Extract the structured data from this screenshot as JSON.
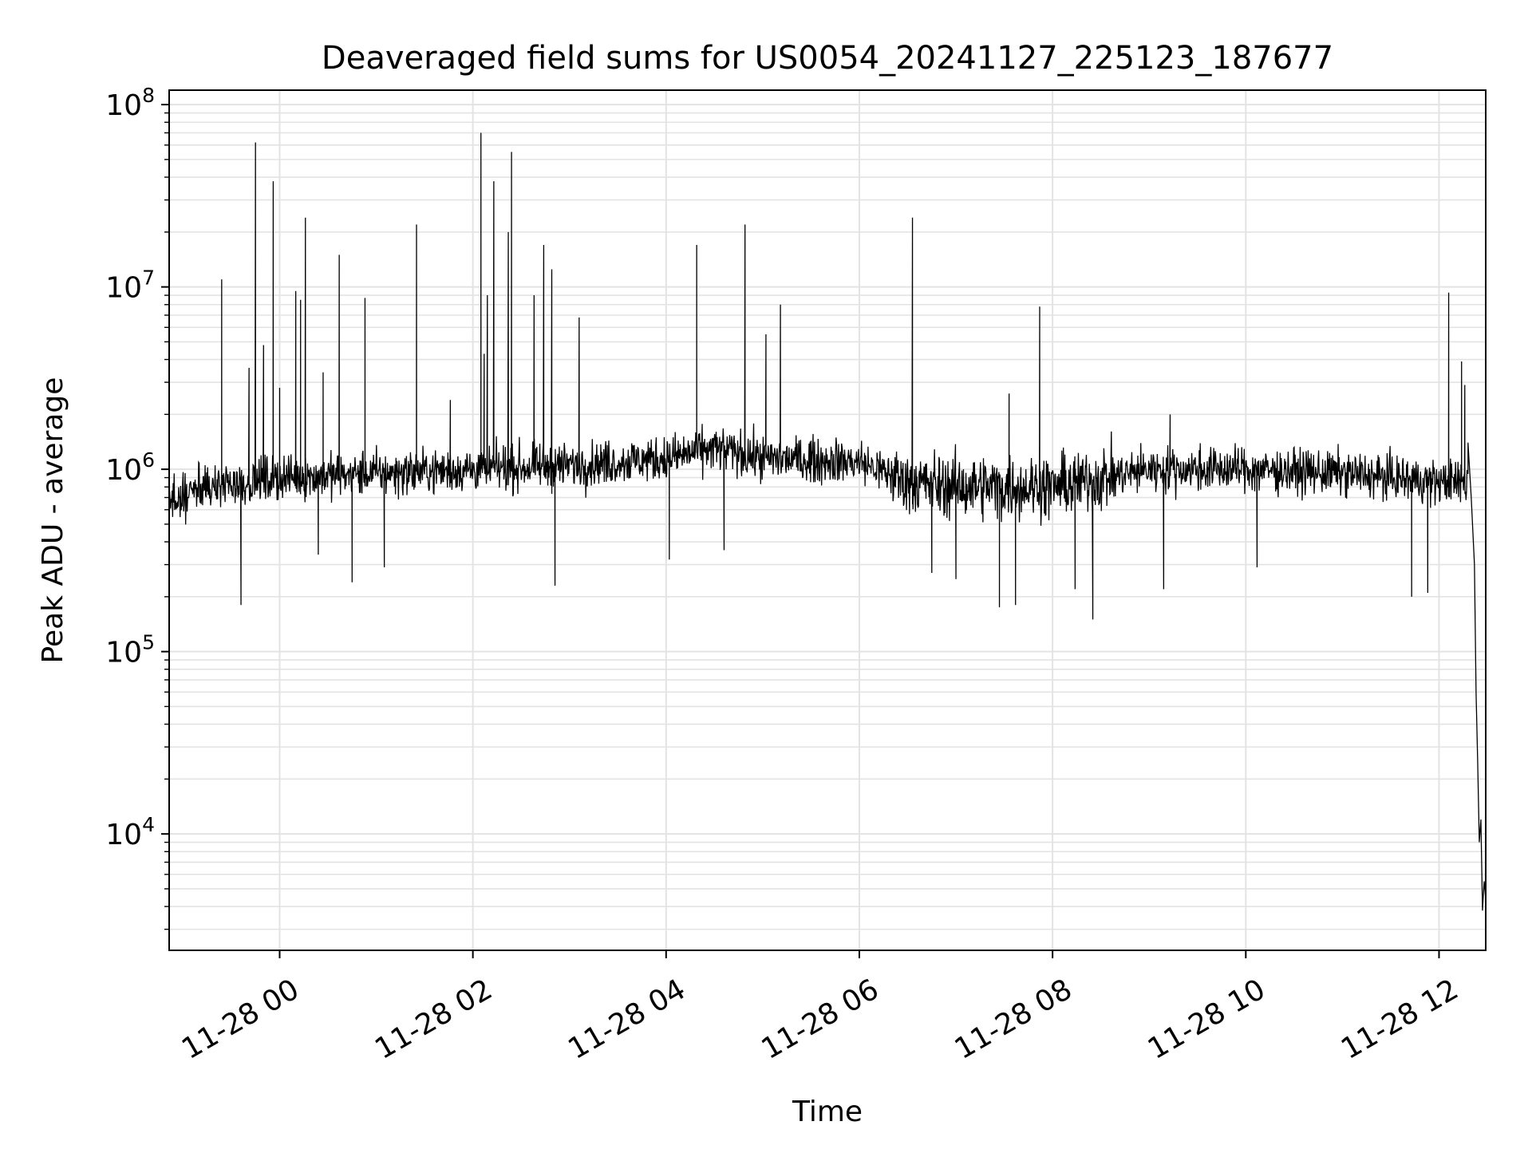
{
  "chart_data": {
    "type": "line",
    "title": "Deaveraged field sums for US0054_20241127_225123_187677",
    "xlabel": "Time",
    "ylabel": "Peak ADU - average",
    "yscale": "log",
    "ylim": [
      2300,
      120000000
    ],
    "xlim": [
      "2024-11-27 22:51:23",
      "2024-11-28 12:29:00"
    ],
    "grid": "major and minor, both axes",
    "series_color": "#000000",
    "x_ticks": [
      {
        "label": "11-28 00",
        "value": "2024-11-28 00:00"
      },
      {
        "label": "11-28 02",
        "value": "2024-11-28 02:00"
      },
      {
        "label": "11-28 04",
        "value": "2024-11-28 04:00"
      },
      {
        "label": "11-28 06",
        "value": "2024-11-28 06:00"
      },
      {
        "label": "11-28 08",
        "value": "2024-11-28 08:00"
      },
      {
        "label": "11-28 10",
        "value": "2024-11-28 10:00"
      },
      {
        "label": "11-28 12",
        "value": "2024-11-28 12:00"
      }
    ],
    "y_ticks": [
      {
        "base": "10",
        "exp": "4",
        "value": 10000
      },
      {
        "base": "10",
        "exp": "5",
        "value": 100000
      },
      {
        "base": "10",
        "exp": "6",
        "value": 1000000
      },
      {
        "base": "10",
        "exp": "7",
        "value": 10000000
      },
      {
        "base": "10",
        "exp": "8",
        "value": 100000000
      }
    ],
    "series": [
      {
        "baseline": [
          {
            "x": "2024-11-27 22:51",
            "y": 650000
          },
          {
            "x": "2024-11-27 23:15",
            "y": 800000
          },
          {
            "x": "2024-11-28 00:00",
            "y": 900000
          },
          {
            "x": "2024-11-28 01:00",
            "y": 950000
          },
          {
            "x": "2024-11-28 02:00",
            "y": 1000000
          },
          {
            "x": "2024-11-28 03:00",
            "y": 1050000
          },
          {
            "x": "2024-11-28 04:00",
            "y": 1150000
          },
          {
            "x": "2024-11-28 04:30",
            "y": 1300000
          },
          {
            "x": "2024-11-28 05:00",
            "y": 1150000
          },
          {
            "x": "2024-11-28 06:00",
            "y": 1100000
          },
          {
            "x": "2024-11-28 06:30",
            "y": 850000
          },
          {
            "x": "2024-11-28 07:00",
            "y": 800000
          },
          {
            "x": "2024-11-28 08:00",
            "y": 800000
          },
          {
            "x": "2024-11-28 09:00",
            "y": 1000000
          },
          {
            "x": "2024-11-28 10:00",
            "y": 1000000
          },
          {
            "x": "2024-11-28 11:00",
            "y": 950000
          },
          {
            "x": "2024-11-28 12:00",
            "y": 850000
          }
        ],
        "spikes": [
          {
            "x": "2024-11-27 23:24",
            "y": 11000000
          },
          {
            "x": "2024-11-27 23:41",
            "y": 3600000
          },
          {
            "x": "2024-11-27 23:45",
            "y": 62000000
          },
          {
            "x": "2024-11-27 23:50",
            "y": 4800000
          },
          {
            "x": "2024-11-27 23:56",
            "y": 38000000
          },
          {
            "x": "2024-11-28 00:00",
            "y": 2800000
          },
          {
            "x": "2024-11-28 00:10",
            "y": 9500000
          },
          {
            "x": "2024-11-28 00:13",
            "y": 8500000
          },
          {
            "x": "2024-11-28 00:16",
            "y": 24000000
          },
          {
            "x": "2024-11-28 00:27",
            "y": 3400000
          },
          {
            "x": "2024-11-28 00:37",
            "y": 15000000
          },
          {
            "x": "2024-11-28 00:53",
            "y": 8700000
          },
          {
            "x": "2024-11-28 01:25",
            "y": 22000000
          },
          {
            "x": "2024-11-28 01:46",
            "y": 2400000
          },
          {
            "x": "2024-11-28 02:05",
            "y": 70000000
          },
          {
            "x": "2024-11-28 02:07",
            "y": 4300000
          },
          {
            "x": "2024-11-28 02:09",
            "y": 9000000
          },
          {
            "x": "2024-11-28 02:13",
            "y": 38000000
          },
          {
            "x": "2024-11-28 02:22",
            "y": 20000000
          },
          {
            "x": "2024-11-28 02:24",
            "y": 55000000
          },
          {
            "x": "2024-11-28 02:38",
            "y": 9000000
          },
          {
            "x": "2024-11-28 02:44",
            "y": 17000000
          },
          {
            "x": "2024-11-28 02:49",
            "y": 12500000
          },
          {
            "x": "2024-11-28 03:06",
            "y": 6800000
          },
          {
            "x": "2024-11-28 04:19",
            "y": 17000000
          },
          {
            "x": "2024-11-28 04:49",
            "y": 22000000
          },
          {
            "x": "2024-11-28 05:02",
            "y": 5500000
          },
          {
            "x": "2024-11-28 05:11",
            "y": 8000000
          },
          {
            "x": "2024-11-28 06:33",
            "y": 24000000
          },
          {
            "x": "2024-11-28 07:33",
            "y": 2600000
          },
          {
            "x": "2024-11-28 07:52",
            "y": 7800000
          },
          {
            "x": "2024-11-28 09:13",
            "y": 2000000
          },
          {
            "x": "2024-11-28 12:06",
            "y": 9300000
          },
          {
            "x": "2024-11-28 12:14",
            "y": 3900000
          },
          {
            "x": "2024-11-28 12:16",
            "y": 2900000
          }
        ],
        "dips": [
          {
            "x": "2024-11-27 23:36",
            "y": 180000
          },
          {
            "x": "2024-11-28 00:24",
            "y": 340000
          },
          {
            "x": "2024-11-28 00:45",
            "y": 240000
          },
          {
            "x": "2024-11-28 01:05",
            "y": 290000
          },
          {
            "x": "2024-11-28 02:51",
            "y": 230000
          },
          {
            "x": "2024-11-28 04:02",
            "y": 320000
          },
          {
            "x": "2024-11-28 04:36",
            "y": 360000
          },
          {
            "x": "2024-11-28 06:45",
            "y": 270000
          },
          {
            "x": "2024-11-28 07:00",
            "y": 250000
          },
          {
            "x": "2024-11-28 07:27",
            "y": 175000
          },
          {
            "x": "2024-11-28 07:37",
            "y": 180000
          },
          {
            "x": "2024-11-28 08:14",
            "y": 220000
          },
          {
            "x": "2024-11-28 08:25",
            "y": 150000
          },
          {
            "x": "2024-11-28 09:09",
            "y": 220000
          },
          {
            "x": "2024-11-28 10:07",
            "y": 290000
          },
          {
            "x": "2024-11-28 11:43",
            "y": 200000
          },
          {
            "x": "2024-11-28 11:53",
            "y": 210000
          }
        ],
        "tail": [
          {
            "x": "2024-11-28 12:18",
            "y": 1400000
          },
          {
            "x": "2024-11-28 12:20",
            "y": 700000
          },
          {
            "x": "2024-11-28 12:22",
            "y": 300000
          },
          {
            "x": "2024-11-28 12:23",
            "y": 60000
          },
          {
            "x": "2024-11-28 12:24",
            "y": 25000
          },
          {
            "x": "2024-11-28 12:25",
            "y": 9000
          },
          {
            "x": "2024-11-28 12:26",
            "y": 12000
          },
          {
            "x": "2024-11-28 12:27",
            "y": 3800
          },
          {
            "x": "2024-11-28 12:28",
            "y": 5500
          },
          {
            "x": "2024-11-28 12:29",
            "y": 4400
          }
        ]
      }
    ]
  }
}
